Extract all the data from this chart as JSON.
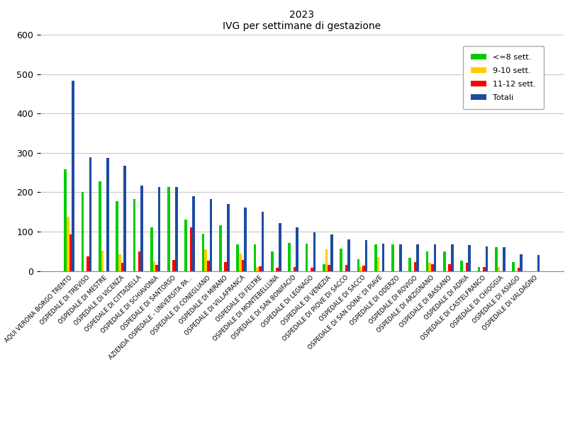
{
  "title": "2023\nIVG per settimane di gestazione",
  "categories": [
    "AQUI VERONA BORGO TRENTO",
    "OSPEDALE DI TREVISO",
    "OSPEDALE DI MESTRE",
    "OSPEDALE DI VICENZA",
    "OSPEDALE DI CITTADELLA",
    "OSPEDALE DI SCHIAVONIA",
    "OSPEDALE DI SANTORSO",
    "AZIENDA OSPEDALE - UNIVERSITA PA...",
    "OSPEDALE DI CONEGLIANO",
    "OSPEDALE DI MIRANO",
    "OSPEDALE DI VILLAFRANCA",
    "OSPEDALE DI FELTRE",
    "OSPEDALE DI MONTEBELLUNA",
    "OSPEDALE DI SAN BONIFACIO",
    "OSPEDALE DI LEGNAGO",
    "OSPEDALE DI VENEZIA",
    "OSPEDALE DI PIOVE DI SACCO",
    "OSPEDALE DI SACCO",
    "OSPEDALE DI SAN DONA' DI PIAVE",
    "OSPEDALE DI ODERZO",
    "OSPEDALE DI ROVIGO",
    "OSPEDALE DI ARZIGNANO",
    "OSPEDALE DI BASSANO",
    "OSPEDALE DI ADRIA",
    "OSPEDALE DI CASTELFRANCO",
    "OSPEDALE DI CHIOGGIA",
    "OSPEDALE DI ASIAGO",
    "OSPEDALE DI VALDAGNO"
  ],
  "green": [
    258,
    200,
    228,
    178,
    182,
    110,
    213,
    130,
    95,
    117,
    68,
    68,
    50,
    72,
    70,
    17,
    57,
    30,
    67,
    67,
    33,
    49,
    50,
    27,
    10,
    60,
    22,
    0
  ],
  "yellow": [
    138,
    0,
    52,
    43,
    0,
    25,
    0,
    0,
    55,
    0,
    45,
    10,
    0,
    0,
    0,
    55,
    0,
    10,
    35,
    0,
    0,
    20,
    0,
    0,
    0,
    10,
    0,
    0
  ],
  "red": [
    93,
    37,
    0,
    20,
    50,
    15,
    28,
    110,
    27,
    22,
    28,
    12,
    8,
    10,
    8,
    15,
    15,
    13,
    0,
    0,
    22,
    18,
    18,
    20,
    10,
    0,
    8,
    0
  ],
  "blue": [
    483,
    289,
    287,
    268,
    217,
    214,
    213,
    190,
    183,
    171,
    161,
    150,
    121,
    110,
    98,
    93,
    80,
    78,
    69,
    68,
    68,
    67,
    67,
    66,
    62,
    60,
    43,
    40
  ],
  "legend_labels": [
    "<=8 sett.",
    "9-10 sett.",
    "11-12 sett.",
    "Totali"
  ],
  "bar_colors": [
    "#00cc00",
    "#ffcc00",
    "#ff0000",
    "#1e4ca1"
  ],
  "ylim": [
    0,
    600
  ],
  "yticks": [
    0,
    100,
    200,
    300,
    400,
    500,
    600
  ],
  "bg_color": "#ffffff",
  "grid_color": "#c8c8c8",
  "title_fontsize": 10,
  "tick_fontsize": 6,
  "legend_fontsize": 8
}
